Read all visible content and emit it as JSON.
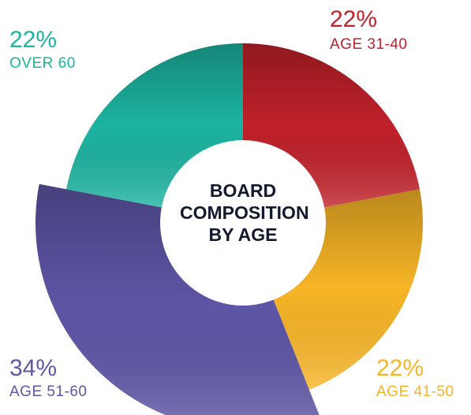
{
  "chart_data": {
    "type": "donut",
    "title": "BOARD COMPOSITION BY AGE",
    "categories": [
      "AGE 31-40",
      "AGE 41-50",
      "AGE 51-60",
      "OVER 60"
    ],
    "values": [
      22,
      22,
      34,
      22
    ],
    "value_labels": [
      "22%",
      "22%",
      "34%",
      "22%"
    ],
    "colors": [
      "#c0212a",
      "#f7b526",
      "#5e56a6",
      "#1cb3a0"
    ],
    "explode": [
      false,
      false,
      true,
      false
    ]
  }
}
